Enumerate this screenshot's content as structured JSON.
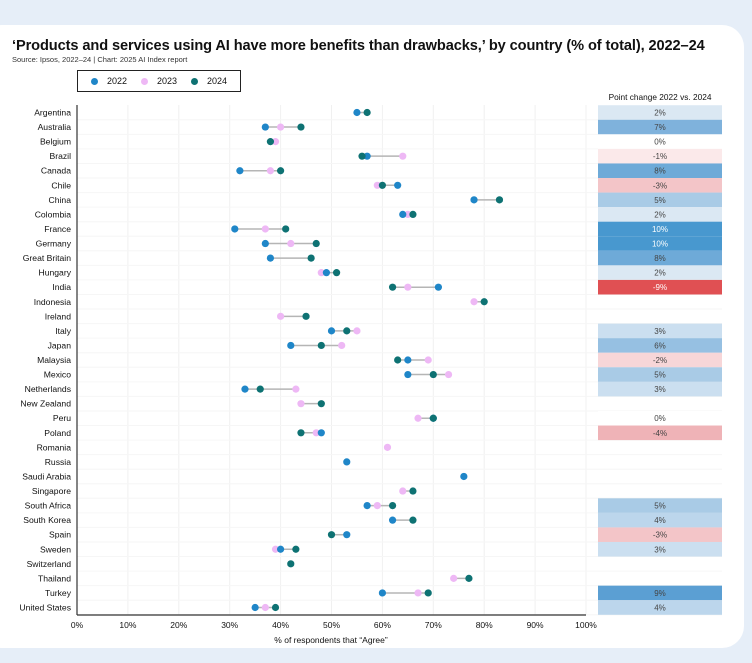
{
  "title": "‘Products and services using AI have more benefits than drawbacks,’ by country (% of total), 2022–24",
  "subtitle": "Source: Ipsos, 2022–24 | Chart: 2025 AI Index report",
  "legend": [
    {
      "label": "2022",
      "color": "#1f86c8"
    },
    {
      "label": "2023",
      "color": "#eeb8f5"
    },
    {
      "label": "2024",
      "color": "#0e7273"
    }
  ],
  "chart_data": {
    "type": "scatter",
    "subtype": "dot-plot",
    "title": "‘Products and services using AI have more benefits than drawbacks,’ by country (% of total), 2022–24",
    "xlabel": "% of respondents that “Agree”",
    "ylabel": "",
    "xlim": [
      0,
      100
    ],
    "x_ticks": [
      "0%",
      "10%",
      "20%",
      "30%",
      "40%",
      "50%",
      "60%",
      "70%",
      "80%",
      "90%",
      "100%"
    ],
    "grid": true,
    "legend_placement": "top-left",
    "series_names": [
      "2022",
      "2023",
      "2024"
    ],
    "series_colors": [
      "#1f86c8",
      "#eeb8f5",
      "#0e7273"
    ],
    "table_header": "Point change 2022 vs. 2024",
    "rows": [
      {
        "country": "Argentina",
        "v2022": 55,
        "v2023": null,
        "v2024": 57,
        "change": "2%",
        "change_value": 2
      },
      {
        "country": "Australia",
        "v2022": 37,
        "v2023": 40,
        "v2024": 44,
        "change": "7%",
        "change_value": 7
      },
      {
        "country": "Belgium",
        "v2022": null,
        "v2023": 39,
        "v2024": 38,
        "change": "0%",
        "change_value": 0
      },
      {
        "country": "Brazil",
        "v2022": 57,
        "v2023": 64,
        "v2024": 56,
        "change": "-1%",
        "change_value": -1
      },
      {
        "country": "Canada",
        "v2022": 32,
        "v2023": 38,
        "v2024": 40,
        "change": "8%",
        "change_value": 8
      },
      {
        "country": "Chile",
        "v2022": 63,
        "v2023": 59,
        "v2024": 60,
        "change": "-3%",
        "change_value": -3
      },
      {
        "country": "China",
        "v2022": 78,
        "v2023": null,
        "v2024": 83,
        "change": "5%",
        "change_value": 5
      },
      {
        "country": "Colombia",
        "v2022": 64,
        "v2023": 65,
        "v2024": 66,
        "change": "2%",
        "change_value": 2
      },
      {
        "country": "France",
        "v2022": 31,
        "v2023": 37,
        "v2024": 41,
        "change": "10%",
        "change_value": 10
      },
      {
        "country": "Germany",
        "v2022": 37,
        "v2023": 42,
        "v2024": 47,
        "change": "10%",
        "change_value": 10
      },
      {
        "country": "Great Britain",
        "v2022": 38,
        "v2023": null,
        "v2024": 46,
        "change": "8%",
        "change_value": 8
      },
      {
        "country": "Hungary",
        "v2022": 49,
        "v2023": 48,
        "v2024": 51,
        "change": "2%",
        "change_value": 2
      },
      {
        "country": "India",
        "v2022": 71,
        "v2023": 65,
        "v2024": 62,
        "change": "-9%",
        "change_value": -9
      },
      {
        "country": "Indonesia",
        "v2022": null,
        "v2023": 78,
        "v2024": 80,
        "change": "",
        "change_value": null
      },
      {
        "country": "Ireland",
        "v2022": null,
        "v2023": 40,
        "v2024": 45,
        "change": "",
        "change_value": null
      },
      {
        "country": "Italy",
        "v2022": 50,
        "v2023": 55,
        "v2024": 53,
        "change": "3%",
        "change_value": 3
      },
      {
        "country": "Japan",
        "v2022": 42,
        "v2023": 52,
        "v2024": 48,
        "change": "6%",
        "change_value": 6
      },
      {
        "country": "Malaysia",
        "v2022": 65,
        "v2023": 69,
        "v2024": 63,
        "change": "-2%",
        "change_value": -2
      },
      {
        "country": "Mexico",
        "v2022": 65,
        "v2023": 73,
        "v2024": 70,
        "change": "5%",
        "change_value": 5
      },
      {
        "country": "Netherlands",
        "v2022": 33,
        "v2023": 43,
        "v2024": 36,
        "change": "3%",
        "change_value": 3
      },
      {
        "country": "New Zealand",
        "v2022": null,
        "v2023": 44,
        "v2024": 48,
        "change": "",
        "change_value": null
      },
      {
        "country": "Peru",
        "v2022": 70,
        "v2023": 67,
        "v2024": 70,
        "change": "0%",
        "change_value": 0
      },
      {
        "country": "Poland",
        "v2022": 48,
        "v2023": 47,
        "v2024": 44,
        "change": "-4%",
        "change_value": -4
      },
      {
        "country": "Romania",
        "v2022": null,
        "v2023": 61,
        "v2024": null,
        "change": "",
        "change_value": null
      },
      {
        "country": "Russia",
        "v2022": 53,
        "v2023": null,
        "v2024": null,
        "change": "",
        "change_value": null
      },
      {
        "country": "Saudi Arabia",
        "v2022": 76,
        "v2023": null,
        "v2024": null,
        "change": "",
        "change_value": null
      },
      {
        "country": "Singapore",
        "v2022": null,
        "v2023": 64,
        "v2024": 66,
        "change": "",
        "change_value": null
      },
      {
        "country": "South Africa",
        "v2022": 57,
        "v2023": 59,
        "v2024": 62,
        "change": "5%",
        "change_value": 5
      },
      {
        "country": "South Korea",
        "v2022": 62,
        "v2023": null,
        "v2024": 66,
        "change": "4%",
        "change_value": 4
      },
      {
        "country": "Spain",
        "v2022": 53,
        "v2023": null,
        "v2024": 50,
        "change": "-3%",
        "change_value": -3
      },
      {
        "country": "Sweden",
        "v2022": 40,
        "v2023": 39,
        "v2024": 43,
        "change": "3%",
        "change_value": 3
      },
      {
        "country": "Switzerland",
        "v2022": null,
        "v2023": null,
        "v2024": 42,
        "change": "",
        "change_value": null
      },
      {
        "country": "Thailand",
        "v2022": null,
        "v2023": 74,
        "v2024": 77,
        "change": "",
        "change_value": null
      },
      {
        "country": "Turkey",
        "v2022": 60,
        "v2023": 67,
        "v2024": 69,
        "change": "9%",
        "change_value": 9
      },
      {
        "country": "United States",
        "v2022": 35,
        "v2023": 37,
        "v2024": 39,
        "change": "4%",
        "change_value": 4
      }
    ]
  }
}
